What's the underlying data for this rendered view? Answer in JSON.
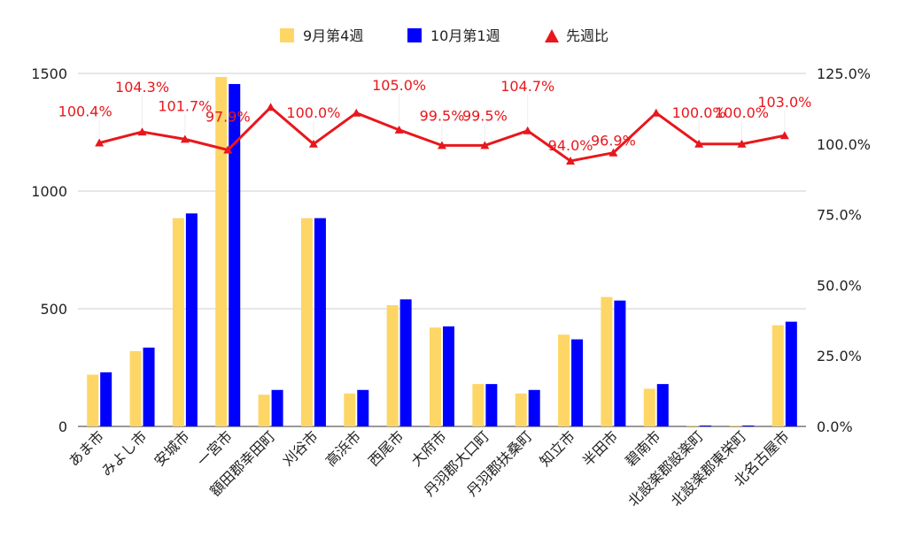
{
  "chart_data": {
    "type": "bar",
    "categories": [
      "あま市",
      "みよし市",
      "安城市",
      "一宮市",
      "額田郡幸田町",
      "刈谷市",
      "高浜市",
      "西尾市",
      "大府市",
      "丹羽郡大口町",
      "丹羽郡扶桑町",
      "知立市",
      "半田市",
      "碧南市",
      "北設楽郡設楽町",
      "北設楽郡東栄町",
      "北名古屋市"
    ],
    "series": [
      {
        "name": "9月第4週",
        "color": "#fdd666",
        "values": [
          220,
          320,
          885,
          1485,
          135,
          885,
          140,
          515,
          420,
          180,
          140,
          390,
          550,
          160,
          0,
          0,
          430
        ]
      },
      {
        "name": "10月第1週",
        "color": "#0000ff",
        "values": [
          230,
          335,
          905,
          1455,
          155,
          885,
          155,
          540,
          425,
          180,
          155,
          370,
          535,
          180,
          0,
          0,
          445
        ]
      }
    ],
    "line_series": {
      "name": "先週比",
      "color": "#e8171c",
      "axis": "right",
      "values": [
        100.4,
        104.3,
        101.7,
        97.9,
        113,
        100.0,
        111,
        105.0,
        99.5,
        99.5,
        104.7,
        94.0,
        96.9,
        111,
        100.0,
        100.0,
        103.0
      ],
      "labels": [
        "100.4%",
        "104.3%",
        "101.7%",
        "97.9%",
        "",
        "100.0%",
        "",
        "105.0%",
        "99.5%",
        "99.5%",
        "104.7%",
        "94.0%",
        "96.9%",
        "",
        "100.0%",
        "100.0%",
        "103.0%"
      ]
    },
    "y_left": {
      "min": 0,
      "max": 1500,
      "ticks": [
        0,
        500,
        1000,
        1500
      ],
      "tick_labels": [
        "0",
        "500",
        "1000",
        "1500"
      ]
    },
    "y_right": {
      "min": 0,
      "max": 125,
      "ticks": [
        0,
        25,
        50,
        75,
        100,
        125
      ],
      "tick_labels": [
        "0.0%",
        "25.0%",
        "50.0%",
        "75.0%",
        "100.0%",
        "125.0%"
      ]
    },
    "grid": true,
    "legend_position": "top"
  }
}
